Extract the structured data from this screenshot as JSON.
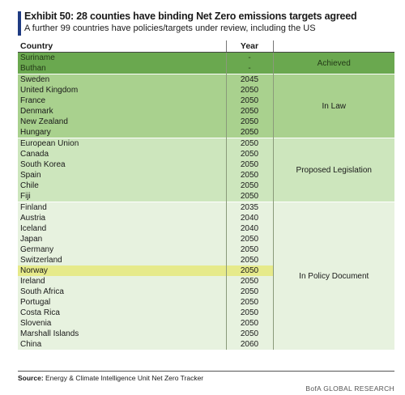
{
  "header": {
    "title": "Exhibit 50: 28 counties have binding Net Zero emissions targets agreed",
    "subtitle": "A further  99 countries have policies/targets under review, including the US"
  },
  "table": {
    "columns": [
      "Country",
      "Year",
      ""
    ],
    "groups": [
      {
        "status": "Achieved",
        "rows": [
          {
            "country": "Suriname",
            "year": "-"
          },
          {
            "country": "Buthan",
            "year": "-"
          }
        ]
      },
      {
        "status": "In Law",
        "rows": [
          {
            "country": "Sweden",
            "year": "2045"
          },
          {
            "country": "United Kingdom",
            "year": "2050"
          },
          {
            "country": "France",
            "year": "2050"
          },
          {
            "country": "Denmark",
            "year": "2050"
          },
          {
            "country": "New Zealand",
            "year": "2050"
          },
          {
            "country": "Hungary",
            "year": "2050"
          }
        ]
      },
      {
        "status": "Proposed Legislation",
        "rows": [
          {
            "country": "European Union",
            "year": "2050"
          },
          {
            "country": "Canada",
            "year": "2050"
          },
          {
            "country": "South Korea",
            "year": "2050"
          },
          {
            "country": "Spain",
            "year": "2050"
          },
          {
            "country": "Chile",
            "year": "2050"
          },
          {
            "country": "Fiji",
            "year": "2050"
          }
        ]
      },
      {
        "status": "In Policy Document",
        "rows": [
          {
            "country": "Finland",
            "year": "2035"
          },
          {
            "country": "Austria",
            "year": "2040"
          },
          {
            "country": "Iceland",
            "year": "2040"
          },
          {
            "country": "Japan",
            "year": "2050"
          },
          {
            "country": "Germany",
            "year": "2050"
          },
          {
            "country": "Switzerland",
            "year": "2050"
          },
          {
            "country": "Norway",
            "year": "2050",
            "highlighted": true
          },
          {
            "country": "Ireland",
            "year": "2050"
          },
          {
            "country": "South Africa",
            "year": "2050"
          },
          {
            "country": "Portugal",
            "year": "2050"
          },
          {
            "country": "Costa Rica",
            "year": "2050"
          },
          {
            "country": "Slovenia",
            "year": "2050"
          },
          {
            "country": "Marshall Islands",
            "year": "2050"
          },
          {
            "country": "China",
            "year": "2060"
          }
        ]
      }
    ]
  },
  "footer": {
    "source_label": "Source:",
    "source_text": "  Energy & Climate Intelligence Unit Net Zero Tracker",
    "brand": "BofA GLOBAL RESEARCH"
  },
  "colors": {
    "accent": "#1f3b82",
    "achieved": "#6aa84f",
    "in_law": "#a9d18e",
    "proposed_legislation": "#cde6bd",
    "in_policy_document": "#e7f2df",
    "highlight": "#e6ea8a"
  }
}
